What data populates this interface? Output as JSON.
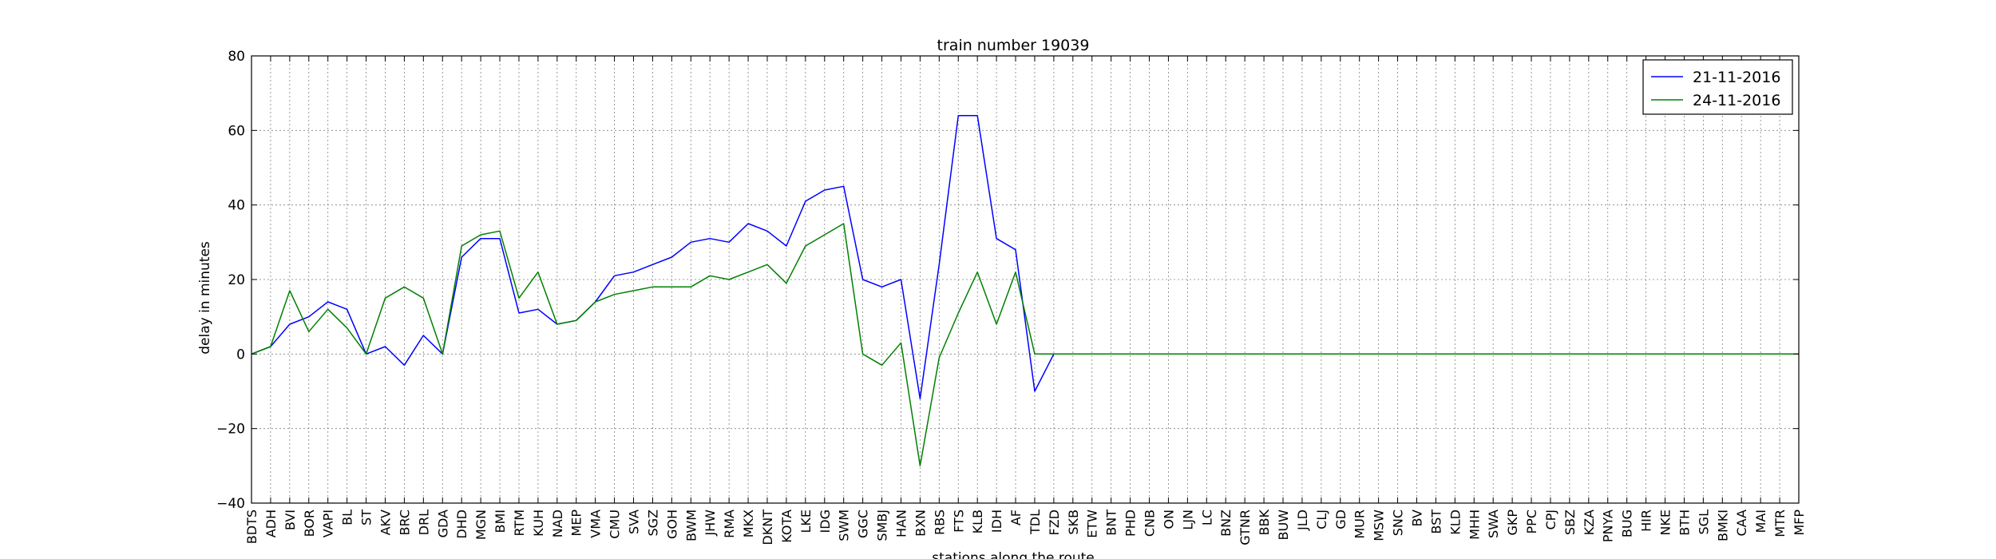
{
  "chart_data": {
    "type": "line",
    "title": "train number 19039",
    "xlabel": "stations along the route",
    "ylabel": "delay in minutes",
    "ylim": [
      -40,
      80
    ],
    "yticks": [
      -40,
      -20,
      0,
      20,
      40,
      60,
      80
    ],
    "ytick_labels": [
      "−40",
      "−20",
      "0",
      "20",
      "40",
      "60",
      "80"
    ],
    "grid": true,
    "legend_position": "top-right",
    "categories": [
      "BDTS",
      "ADH",
      "BVI",
      "BOR",
      "VAPI",
      "BL",
      "ST",
      "AKV",
      "BRC",
      "DRL",
      "GDA",
      "DHD",
      "MGN",
      "BMI",
      "RTM",
      "KUH",
      "NAD",
      "MEP",
      "VMA",
      "CMU",
      "SVA",
      "SGZ",
      "GOH",
      "BWM",
      "JHW",
      "RMA",
      "MKX",
      "DKNT",
      "KOTA",
      "LKE",
      "IDG",
      "SWM",
      "GGC",
      "SMBJ",
      "HAN",
      "BXN",
      "RBS",
      "FTS",
      "KLB",
      "IDH",
      "AF",
      "TDL",
      "FZD",
      "SKB",
      "ETW",
      "BNT",
      "PHD",
      "CNB",
      "ON",
      "LJN",
      "LC",
      "BNZ",
      "GTNR",
      "BBK",
      "BUW",
      "JLD",
      "CLJ",
      "GD",
      "MUR",
      "MSW",
      "SNC",
      "BV",
      "BST",
      "KLD",
      "MHH",
      "SWA",
      "GKP",
      "PPC",
      "CPJ",
      "SBZ",
      "KZA",
      "PNYA",
      "BUG",
      "HIR",
      "NKE",
      "BTH",
      "SGL",
      "BMKI",
      "CAA",
      "MAI",
      "MTR",
      "MFP"
    ],
    "series": [
      {
        "name": "21-11-2016",
        "color": "#0000ff",
        "values": [
          0,
          2,
          8,
          10,
          14,
          12,
          0,
          2,
          -3,
          5,
          0,
          26,
          31,
          31,
          11,
          12,
          8,
          9,
          14,
          21,
          22,
          24,
          26,
          30,
          31,
          30,
          35,
          33,
          29,
          41,
          44,
          45,
          20,
          18,
          20,
          -12,
          24,
          64,
          64,
          31,
          28,
          -10,
          0,
          0,
          0,
          0,
          0,
          0,
          0,
          0,
          0,
          0,
          0,
          0,
          0,
          0,
          0,
          0,
          0,
          0,
          0,
          0,
          0,
          0,
          0,
          0,
          0,
          0,
          0,
          0,
          0,
          0,
          0,
          0,
          0,
          0,
          0,
          0,
          0,
          0,
          0,
          0
        ]
      },
      {
        "name": "24-11-2016",
        "color": "#008000",
        "values": [
          0,
          2,
          17,
          6,
          12,
          7,
          0,
          15,
          18,
          15,
          0,
          29,
          32,
          33,
          15,
          22,
          8,
          9,
          14,
          16,
          17,
          18,
          18,
          18,
          21,
          20,
          22,
          24,
          19,
          29,
          32,
          35,
          0,
          -3,
          3,
          -30,
          -1,
          11,
          22,
          8,
          22,
          0,
          0,
          0,
          0,
          0,
          0,
          0,
          0,
          0,
          0,
          0,
          0,
          0,
          0,
          0,
          0,
          0,
          0,
          0,
          0,
          0,
          0,
          0,
          0,
          0,
          0,
          0,
          0,
          0,
          0,
          0,
          0,
          0,
          0,
          0,
          0,
          0,
          0,
          0,
          0,
          0
        ]
      }
    ]
  }
}
